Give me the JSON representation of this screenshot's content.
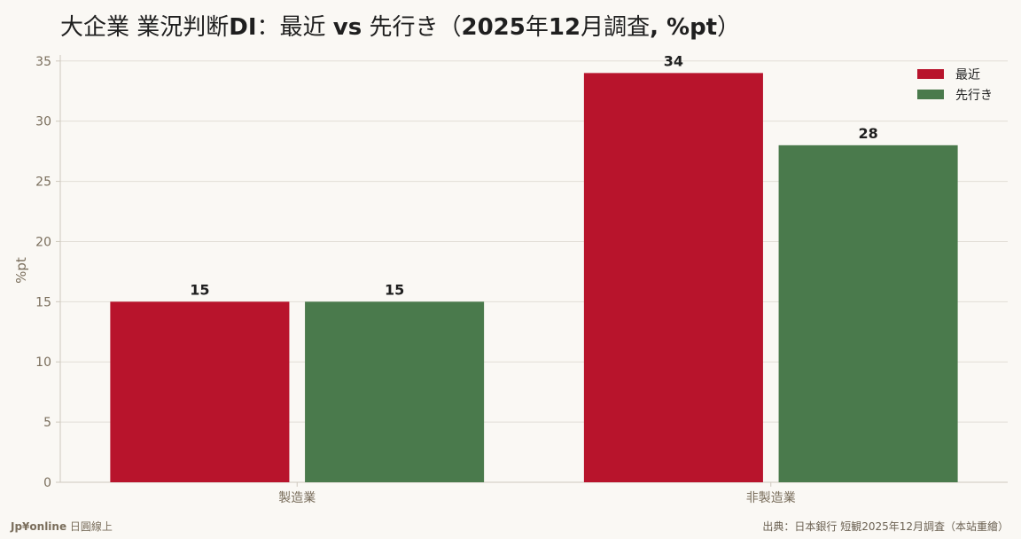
{
  "title": {
    "part1": "大企業 業況判断",
    "part2": "DI",
    "part3": "：最近 ",
    "part4": "vs",
    "part5": " 先行き（",
    "part6": "2025",
    "part7": "年",
    "part8": "12",
    "part9": "月調査",
    "part10": ", %pt",
    "part11": "）"
  },
  "footer": {
    "brand_main": "Jp¥online",
    "brand_sub": " 日圓線上",
    "source": "出典：日本銀行 短観2025年12月調査（本站重繪）"
  },
  "colors": {
    "recent": "#b8142c",
    "outlook": "#4a7a4c",
    "grid": "#e2ded6",
    "axis": "#cfc9be",
    "tick_text": "#7a6e5c",
    "label_text": "#1f1f1f"
  },
  "chart_data": {
    "type": "bar",
    "title": "大企業 業況判断DI：最近 vs 先行き（2025年12月調査, %pt）",
    "xlabel": "",
    "ylabel": "%pt",
    "categories": [
      "製造業",
      "非製造業"
    ],
    "series": [
      {
        "name": "最近",
        "values": [
          15,
          34
        ]
      },
      {
        "name": "先行き",
        "values": [
          15,
          28
        ]
      }
    ],
    "ylim": [
      0,
      35.5
    ],
    "yticks": [
      0,
      5,
      10,
      15,
      20,
      25,
      30,
      35
    ],
    "grid": true,
    "legend": "top-right",
    "data_labels": true
  }
}
